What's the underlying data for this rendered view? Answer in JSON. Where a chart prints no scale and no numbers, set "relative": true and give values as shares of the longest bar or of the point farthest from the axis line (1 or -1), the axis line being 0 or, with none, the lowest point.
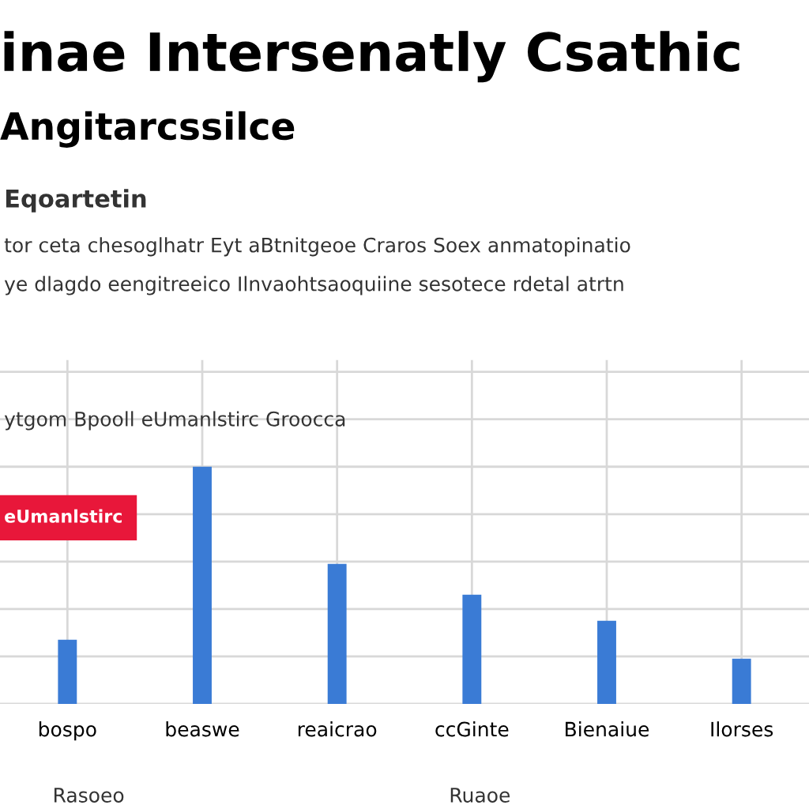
{
  "chart_data": {
    "type": "bar",
    "title": "inae Intersenatly Csathic",
    "subtitle": "Angitarcssilce",
    "annotations": [
      "Eqoartetin",
      "tor ceta chesoglhatr Eyt aBtnitgeoe Craros Soex anmatopinatio",
      "ye dlagdo eengitreeico Ilnvaohtsaoquiine sesotece rdetal atrtn",
      "ytgom Bpooll eUmanlstirc Groocca",
      "eUmanlstirc",
      "Rasoeo",
      "Ruaoe"
    ],
    "categories": [
      "bospo",
      "beaswe",
      "reaicrao",
      "ccGinte",
      "Bienaiue",
      "Ilorses"
    ],
    "values": [
      0.27,
      1,
      0.59,
      0.46,
      0.35,
      0.19
    ],
    "color": "#3a7bd5",
    "relative": true,
    "grid": true,
    "tick_labels": "x"
  }
}
